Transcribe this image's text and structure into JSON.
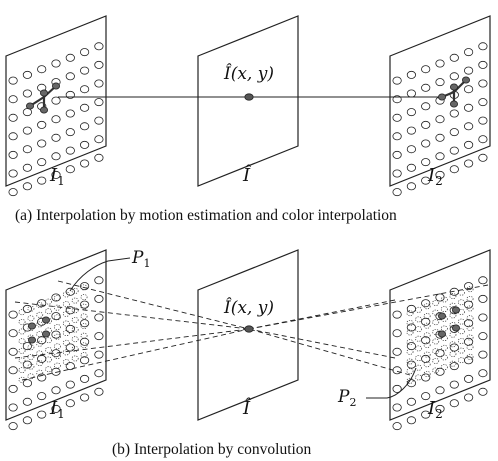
{
  "panel_a": {
    "caption": "(a)  Interpolation by motion estimation and color interpolation",
    "left_frame": {
      "name": "I",
      "sub": "1"
    },
    "middle_frame": {
      "name": "Î"
    },
    "right_frame": {
      "name": "I",
      "sub": "2"
    },
    "point_label": "Î(x, y)"
  },
  "panel_b": {
    "caption": "(b)  Interpolation by convolution",
    "left_frame": {
      "name": "I",
      "sub": "1"
    },
    "middle_frame": {
      "name": "Î"
    },
    "right_frame": {
      "name": "I",
      "sub": "2"
    },
    "point_label": "Î(x, y)",
    "patch_1": {
      "name": "P",
      "sub": "1"
    },
    "patch_2": {
      "name": "P",
      "sub": "2"
    }
  }
}
